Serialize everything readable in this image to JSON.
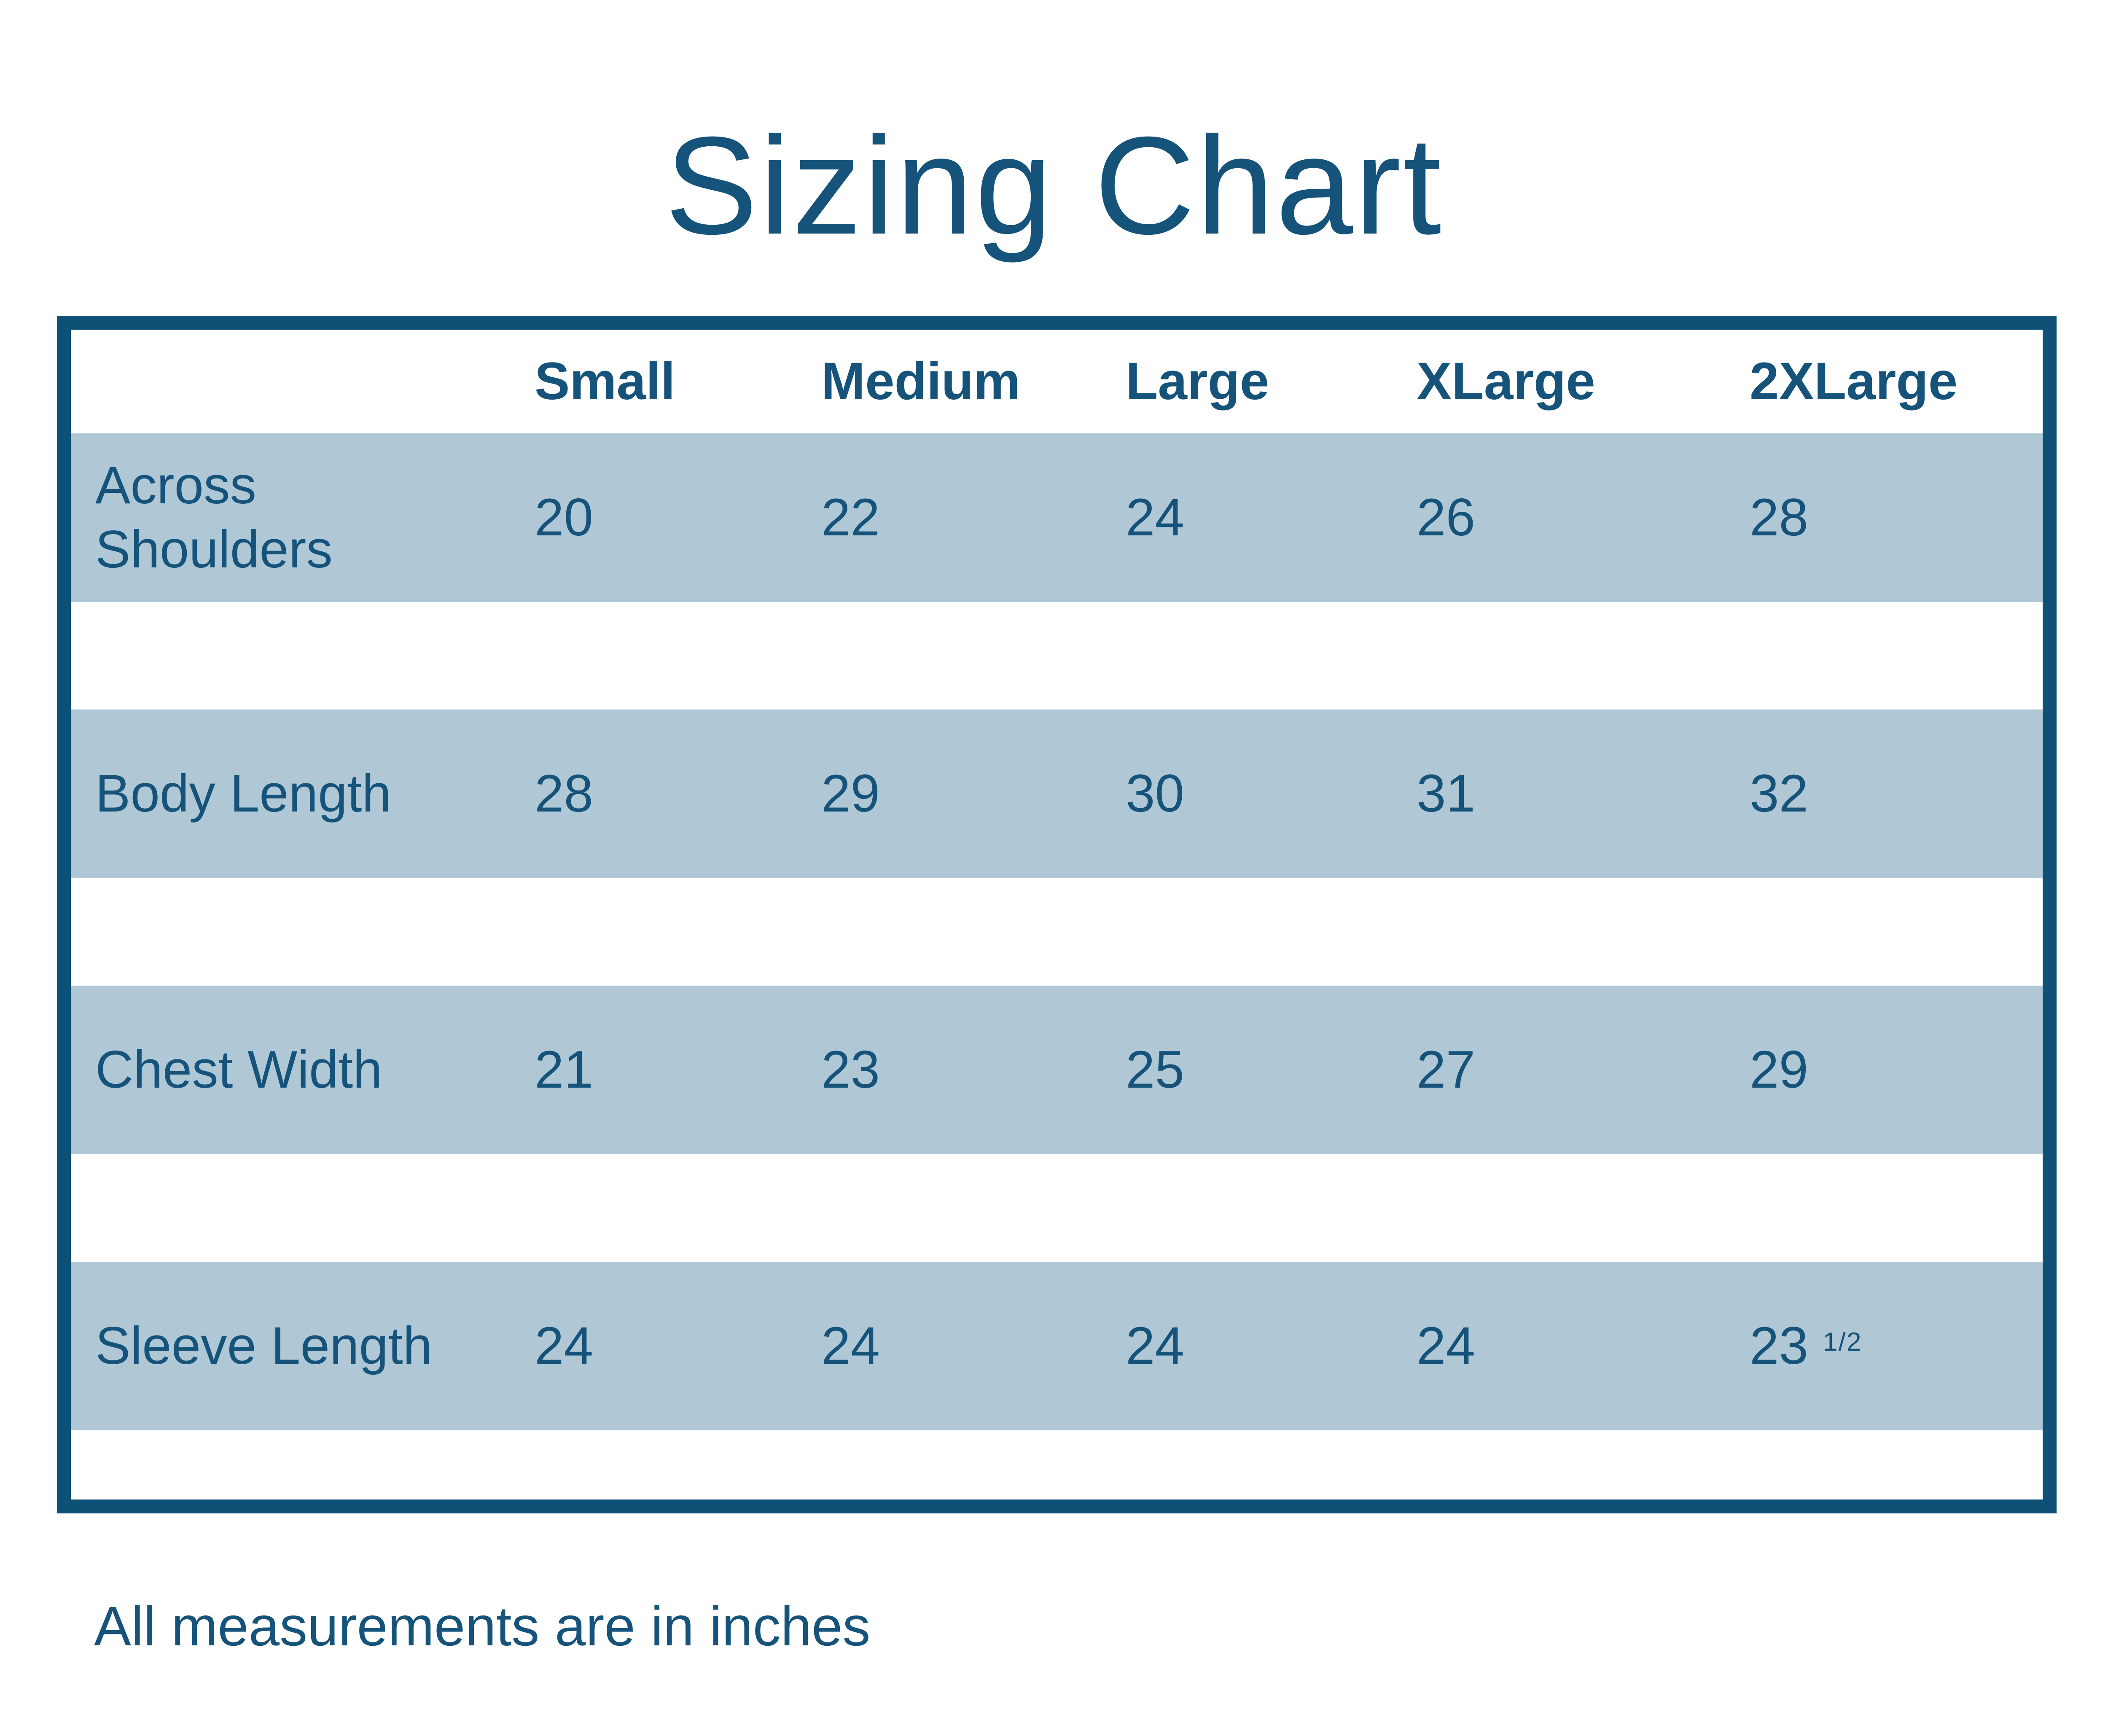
{
  "page": {
    "title": "Sizing Chart",
    "footnote": "All measurements are in inches"
  },
  "colors": {
    "ink": "#15537b",
    "frame": "#0d5177",
    "band": "#b0c8d6",
    "background": "#ffffff"
  },
  "table": {
    "header": [
      "Small",
      "Medium",
      "Large",
      "XLarge",
      "2XLarge"
    ],
    "rows": [
      {
        "label": "Across Shoulders",
        "values": [
          "20",
          "22",
          "24",
          "26",
          "28"
        ]
      },
      {
        "label": "Body Length",
        "values": [
          "28",
          "29",
          "30",
          "31",
          "32"
        ]
      },
      {
        "label": "Chest Width",
        "values": [
          "21",
          "23",
          "25",
          "27",
          "29"
        ]
      },
      {
        "label": "Sleeve Length",
        "values": [
          "24",
          "24",
          "24",
          "24",
          "23 1/2"
        ]
      }
    ]
  },
  "chart_data": {
    "type": "table",
    "title": "Sizing Chart",
    "columns": [
      "Small",
      "Medium",
      "Large",
      "XLarge",
      "2XLarge"
    ],
    "rows": [
      {
        "label": "Across Shoulders",
        "values": [
          20,
          22,
          24,
          26,
          28
        ]
      },
      {
        "label": "Body Length",
        "values": [
          28,
          29,
          30,
          31,
          32
        ]
      },
      {
        "label": "Chest Width",
        "values": [
          21,
          23,
          25,
          27,
          29
        ]
      },
      {
        "label": "Sleeve Length",
        "values": [
          24,
          24,
          24,
          24,
          23.5
        ]
      }
    ],
    "note": "All measurements are in inches",
    "units": "inches"
  }
}
